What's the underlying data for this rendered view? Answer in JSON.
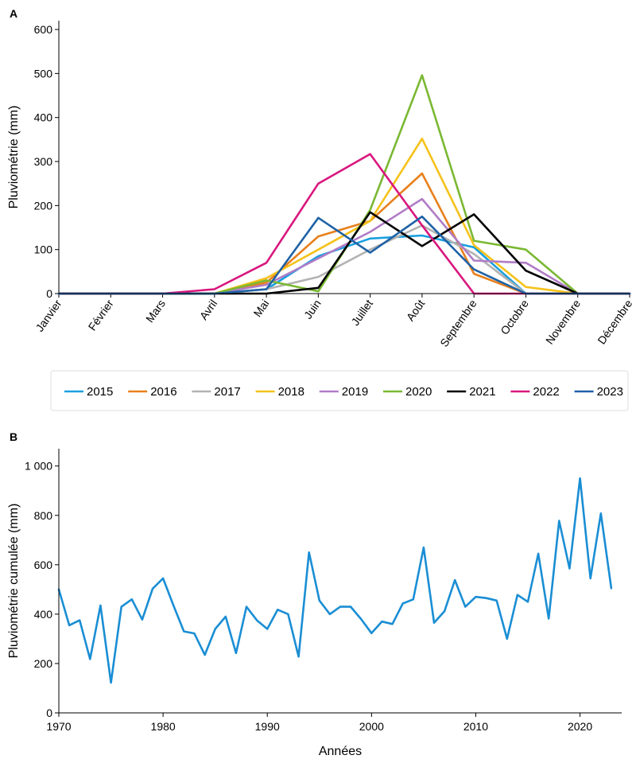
{
  "chart_data": [
    {
      "panel": "A",
      "type": "line",
      "title": "",
      "xlabel": "",
      "ylabel": "Pluviométrie (mm)",
      "ylim": [
        0,
        620
      ],
      "yticks": [
        "0",
        "100",
        "200",
        "300",
        "400",
        "500",
        "600"
      ],
      "categories": [
        "Janvier",
        "Février",
        "Mars",
        "Avril",
        "Mai",
        "Juin",
        "Juillet",
        "Août",
        "Septembre",
        "Octobre",
        "Novembre",
        "Décembre"
      ],
      "legend_position": "bottom",
      "series": [
        {
          "name": "2015",
          "color": "#1a9fdf",
          "values": [
            0,
            0,
            0,
            0,
            10,
            85,
            125,
            132,
            105,
            0,
            0,
            0
          ]
        },
        {
          "name": "2016",
          "color": "#e8801c",
          "values": [
            0,
            0,
            0,
            0,
            25,
            130,
            165,
            273,
            45,
            0,
            0,
            0
          ]
        },
        {
          "name": "2017",
          "color": "#b3b3b3",
          "values": [
            0,
            0,
            0,
            0,
            10,
            38,
            100,
            155,
            90,
            0,
            0,
            0
          ]
        },
        {
          "name": "2018",
          "color": "#f5c21b",
          "values": [
            0,
            0,
            0,
            0,
            35,
            100,
            165,
            352,
            110,
            15,
            0,
            0
          ]
        },
        {
          "name": "2019",
          "color": "#b07cc6",
          "values": [
            0,
            0,
            0,
            0,
            20,
            80,
            140,
            215,
            75,
            70,
            0,
            0
          ]
        },
        {
          "name": "2020",
          "color": "#7ab833",
          "values": [
            0,
            0,
            0,
            0,
            30,
            5,
            190,
            496,
            120,
            100,
            0,
            0
          ]
        },
        {
          "name": "2021",
          "color": "#000000",
          "values": [
            0,
            0,
            0,
            0,
            0,
            13,
            185,
            108,
            180,
            52,
            0,
            0
          ]
        },
        {
          "name": "2022",
          "color": "#d9177e",
          "values": [
            0,
            0,
            0,
            10,
            70,
            250,
            317,
            155,
            0,
            0,
            0,
            0
          ]
        },
        {
          "name": "2023",
          "color": "#1f62a6",
          "values": [
            0,
            0,
            0,
            0,
            10,
            172,
            93,
            175,
            55,
            0,
            0,
            0
          ]
        }
      ]
    },
    {
      "panel": "B",
      "type": "line",
      "title": "",
      "xlabel": "Années",
      "ylabel": "Pluviométrie cumulée (mm)",
      "ylim": [
        0,
        1070
      ],
      "xlim": [
        1970,
        2024
      ],
      "yticks": [
        "0",
        "200",
        "400",
        "600",
        "800",
        "1 000"
      ],
      "xticks": [
        "1970",
        "1980",
        "1990",
        "2000",
        "2010",
        "2020"
      ],
      "color": "#1a8ed4",
      "x": [
        1970,
        1971,
        1972,
        1973,
        1974,
        1975,
        1976,
        1977,
        1978,
        1979,
        1980,
        1981,
        1982,
        1983,
        1984,
        1985,
        1986,
        1987,
        1988,
        1989,
        1990,
        1991,
        1992,
        1993,
        1994,
        1995,
        1996,
        1997,
        1998,
        1999,
        2000,
        2001,
        2002,
        2003,
        2004,
        2005,
        2006,
        2007,
        2008,
        2009,
        2010,
        2011,
        2012,
        2013,
        2014,
        2015,
        2016,
        2017,
        2018,
        2019,
        2020,
        2021,
        2022,
        2023
      ],
      "y": [
        500,
        355,
        375,
        218,
        435,
        122,
        430,
        460,
        378,
        503,
        545,
        435,
        330,
        322,
        235,
        340,
        390,
        242,
        430,
        375,
        340,
        418,
        400,
        228,
        650,
        455,
        400,
        430,
        430,
        380,
        323,
        370,
        360,
        443,
        460,
        670,
        365,
        412,
        538,
        430,
        470,
        465,
        455,
        300,
        478,
        450,
        645,
        382,
        778,
        585,
        950,
        545,
        808,
        505
      ]
    }
  ]
}
